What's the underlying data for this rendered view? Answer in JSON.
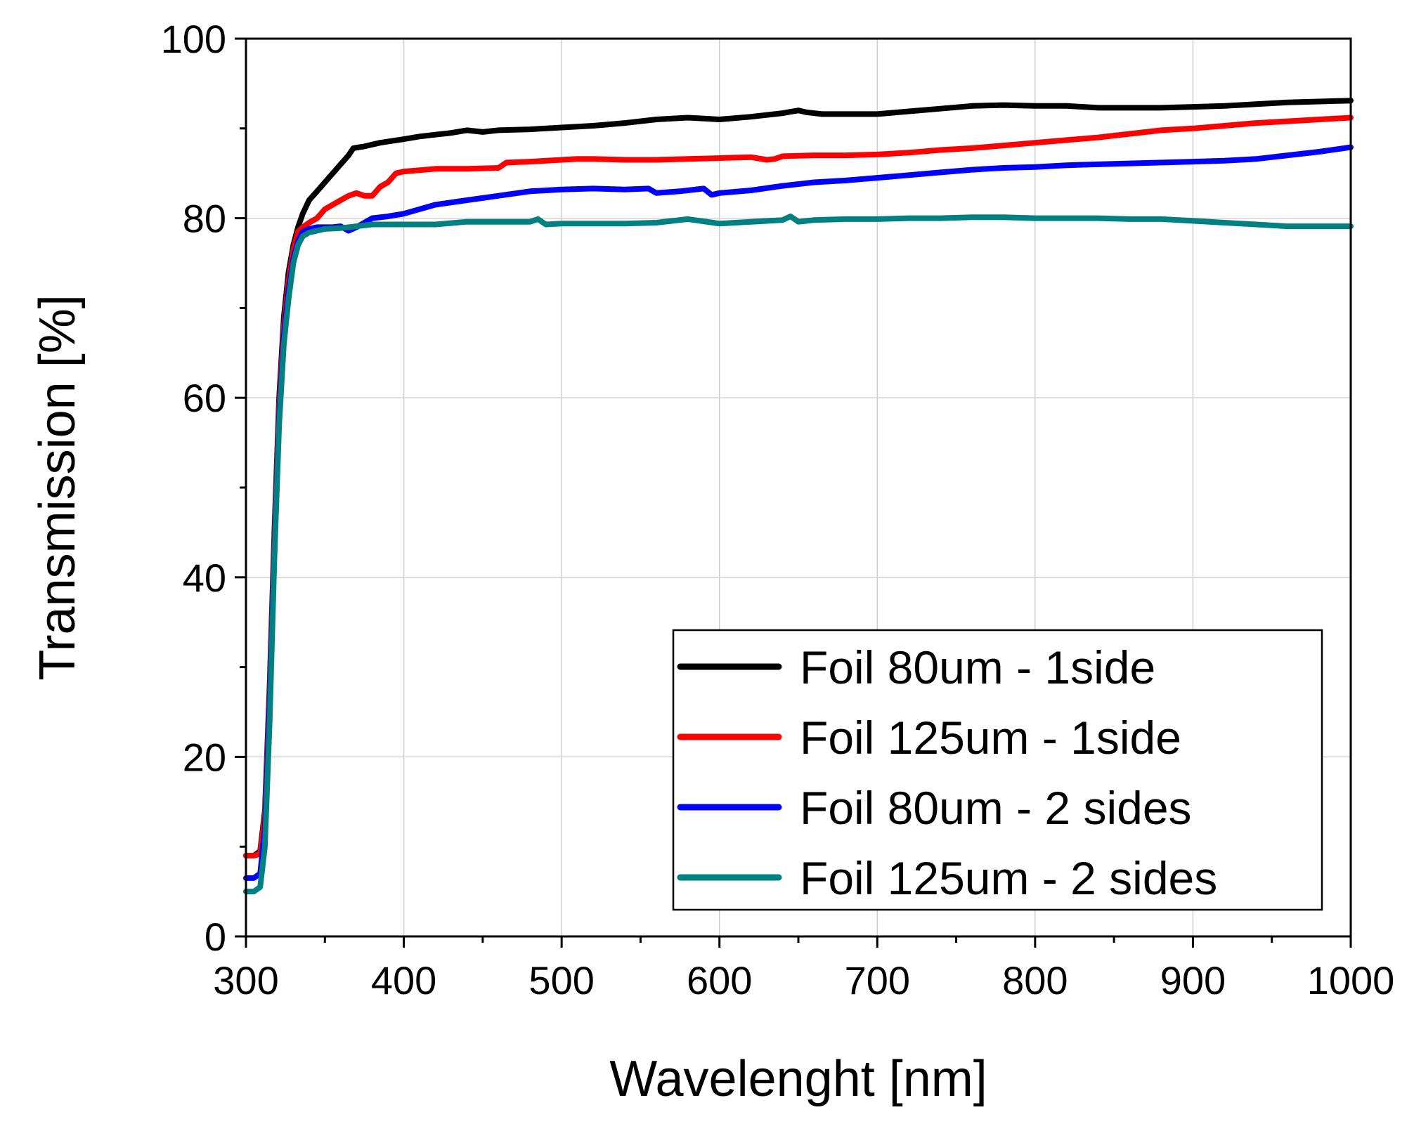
{
  "chart_data": {
    "type": "line",
    "title": "",
    "xlabel": "Wavelenght [nm]",
    "ylabel": "Transmission [%]",
    "xlim": [
      300,
      1000
    ],
    "ylim": [
      0,
      100
    ],
    "xticks": [
      300,
      400,
      500,
      600,
      700,
      800,
      900,
      1000
    ],
    "xtick_labels": [
      "300",
      "400",
      "500",
      "600",
      "700",
      "800",
      "900",
      "1000"
    ],
    "x_minor_step": 50,
    "yticks": [
      0,
      20,
      40,
      60,
      80,
      100
    ],
    "ytick_labels": [
      "0",
      "20",
      "40",
      "60",
      "80",
      "100"
    ],
    "y_minor_step": 10,
    "grid": true,
    "legend_position": "bottom-right",
    "series": [
      {
        "name": "Foil 80um - 1side",
        "color": "#000000",
        "points": [
          [
            300,
            9
          ],
          [
            305,
            9
          ],
          [
            309,
            9.5
          ],
          [
            312,
            14
          ],
          [
            315,
            28
          ],
          [
            318,
            45
          ],
          [
            321,
            60
          ],
          [
            324,
            69
          ],
          [
            327,
            74
          ],
          [
            330,
            77
          ],
          [
            333,
            79
          ],
          [
            336,
            80.5
          ],
          [
            340,
            82
          ],
          [
            345,
            83
          ],
          [
            350,
            84
          ],
          [
            355,
            85
          ],
          [
            360,
            86
          ],
          [
            365,
            87
          ],
          [
            368,
            87.8
          ],
          [
            375,
            88
          ],
          [
            385,
            88.4
          ],
          [
            400,
            88.8
          ],
          [
            410,
            89.1
          ],
          [
            420,
            89.3
          ],
          [
            430,
            89.5
          ],
          [
            440,
            89.8
          ],
          [
            450,
            89.6
          ],
          [
            460,
            89.8
          ],
          [
            480,
            89.9
          ],
          [
            500,
            90.1
          ],
          [
            520,
            90.3
          ],
          [
            540,
            90.6
          ],
          [
            560,
            91
          ],
          [
            580,
            91.2
          ],
          [
            600,
            91
          ],
          [
            620,
            91.3
          ],
          [
            640,
            91.7
          ],
          [
            650,
            92
          ],
          [
            655,
            91.8
          ],
          [
            665,
            91.6
          ],
          [
            680,
            91.6
          ],
          [
            700,
            91.6
          ],
          [
            720,
            91.9
          ],
          [
            740,
            92.2
          ],
          [
            760,
            92.5
          ],
          [
            780,
            92.6
          ],
          [
            800,
            92.5
          ],
          [
            820,
            92.5
          ],
          [
            840,
            92.3
          ],
          [
            860,
            92.3
          ],
          [
            880,
            92.3
          ],
          [
            900,
            92.4
          ],
          [
            920,
            92.5
          ],
          [
            940,
            92.7
          ],
          [
            960,
            92.9
          ],
          [
            980,
            93
          ],
          [
            1000,
            93.1
          ]
        ]
      },
      {
        "name": "Foil 125um - 1side",
        "color": "#ff0000",
        "points": [
          [
            300,
            9
          ],
          [
            305,
            9
          ],
          [
            309,
            9.2
          ],
          [
            312,
            13.5
          ],
          [
            315,
            27
          ],
          [
            318,
            44
          ],
          [
            321,
            59
          ],
          [
            324,
            68
          ],
          [
            327,
            73
          ],
          [
            330,
            76.5
          ],
          [
            333,
            78.5
          ],
          [
            336,
            79
          ],
          [
            340,
            79.5
          ],
          [
            345,
            80
          ],
          [
            350,
            81
          ],
          [
            355,
            81.5
          ],
          [
            360,
            82
          ],
          [
            365,
            82.5
          ],
          [
            370,
            82.8
          ],
          [
            375,
            82.5
          ],
          [
            380,
            82.5
          ],
          [
            385,
            83.5
          ],
          [
            390,
            84
          ],
          [
            395,
            85
          ],
          [
            400,
            85.2
          ],
          [
            420,
            85.5
          ],
          [
            440,
            85.5
          ],
          [
            460,
            85.6
          ],
          [
            465,
            86.2
          ],
          [
            480,
            86.3
          ],
          [
            500,
            86.5
          ],
          [
            510,
            86.6
          ],
          [
            520,
            86.6
          ],
          [
            540,
            86.5
          ],
          [
            560,
            86.5
          ],
          [
            580,
            86.6
          ],
          [
            600,
            86.7
          ],
          [
            620,
            86.8
          ],
          [
            630,
            86.5
          ],
          [
            635,
            86.6
          ],
          [
            640,
            86.9
          ],
          [
            660,
            87
          ],
          [
            680,
            87
          ],
          [
            700,
            87.1
          ],
          [
            720,
            87.3
          ],
          [
            740,
            87.6
          ],
          [
            760,
            87.8
          ],
          [
            780,
            88.1
          ],
          [
            800,
            88.4
          ],
          [
            820,
            88.7
          ],
          [
            840,
            89
          ],
          [
            860,
            89.4
          ],
          [
            880,
            89.8
          ],
          [
            900,
            90
          ],
          [
            920,
            90.3
          ],
          [
            940,
            90.6
          ],
          [
            960,
            90.8
          ],
          [
            980,
            91
          ],
          [
            1000,
            91.2
          ]
        ]
      },
      {
        "name": "Foil 80um - 2 sides",
        "color": "#0000ff",
        "points": [
          [
            300,
            6.5
          ],
          [
            305,
            6.5
          ],
          [
            309,
            7
          ],
          [
            312,
            12
          ],
          [
            315,
            26
          ],
          [
            318,
            43
          ],
          [
            321,
            58
          ],
          [
            324,
            67
          ],
          [
            327,
            72
          ],
          [
            330,
            75.5
          ],
          [
            333,
            77.5
          ],
          [
            336,
            78.5
          ],
          [
            340,
            78.8
          ],
          [
            345,
            79
          ],
          [
            350,
            79
          ],
          [
            355,
            79
          ],
          [
            360,
            79.1
          ],
          [
            365,
            78.6
          ],
          [
            370,
            79
          ],
          [
            375,
            79.5
          ],
          [
            380,
            80
          ],
          [
            390,
            80.2
          ],
          [
            400,
            80.5
          ],
          [
            410,
            81
          ],
          [
            420,
            81.5
          ],
          [
            440,
            82
          ],
          [
            460,
            82.5
          ],
          [
            480,
            83
          ],
          [
            500,
            83.2
          ],
          [
            520,
            83.3
          ],
          [
            540,
            83.2
          ],
          [
            555,
            83.3
          ],
          [
            560,
            82.8
          ],
          [
            575,
            83
          ],
          [
            590,
            83.3
          ],
          [
            595,
            82.6
          ],
          [
            600,
            82.8
          ],
          [
            620,
            83.1
          ],
          [
            640,
            83.6
          ],
          [
            660,
            84
          ],
          [
            680,
            84.2
          ],
          [
            700,
            84.5
          ],
          [
            720,
            84.8
          ],
          [
            740,
            85.1
          ],
          [
            760,
            85.4
          ],
          [
            780,
            85.6
          ],
          [
            800,
            85.7
          ],
          [
            820,
            85.9
          ],
          [
            840,
            86
          ],
          [
            860,
            86.1
          ],
          [
            880,
            86.2
          ],
          [
            900,
            86.3
          ],
          [
            920,
            86.4
          ],
          [
            940,
            86.6
          ],
          [
            960,
            87
          ],
          [
            980,
            87.4
          ],
          [
            1000,
            87.9
          ]
        ]
      },
      {
        "name": "Foil 125um - 2 sides",
        "color": "#008080",
        "points": [
          [
            300,
            5
          ],
          [
            305,
            5
          ],
          [
            309,
            5.5
          ],
          [
            312,
            10
          ],
          [
            315,
            24
          ],
          [
            318,
            42
          ],
          [
            321,
            57
          ],
          [
            324,
            66
          ],
          [
            327,
            71
          ],
          [
            330,
            75
          ],
          [
            333,
            77
          ],
          [
            336,
            78
          ],
          [
            340,
            78.4
          ],
          [
            345,
            78.6
          ],
          [
            350,
            78.8
          ],
          [
            360,
            78.9
          ],
          [
            370,
            79.1
          ],
          [
            380,
            79.3
          ],
          [
            400,
            79.3
          ],
          [
            420,
            79.3
          ],
          [
            440,
            79.6
          ],
          [
            460,
            79.6
          ],
          [
            480,
            79.6
          ],
          [
            485,
            79.9
          ],
          [
            490,
            79.3
          ],
          [
            500,
            79.4
          ],
          [
            520,
            79.4
          ],
          [
            540,
            79.4
          ],
          [
            560,
            79.5
          ],
          [
            580,
            79.9
          ],
          [
            600,
            79.4
          ],
          [
            620,
            79.6
          ],
          [
            640,
            79.8
          ],
          [
            645,
            80.2
          ],
          [
            650,
            79.6
          ],
          [
            660,
            79.8
          ],
          [
            680,
            79.9
          ],
          [
            700,
            79.9
          ],
          [
            720,
            80
          ],
          [
            740,
            80
          ],
          [
            760,
            80.1
          ],
          [
            780,
            80.1
          ],
          [
            800,
            80
          ],
          [
            820,
            80
          ],
          [
            840,
            80
          ],
          [
            860,
            79.9
          ],
          [
            880,
            79.9
          ],
          [
            900,
            79.7
          ],
          [
            920,
            79.5
          ],
          [
            940,
            79.3
          ],
          [
            960,
            79.1
          ],
          [
            980,
            79.1
          ],
          [
            1000,
            79.1
          ]
        ]
      }
    ]
  }
}
